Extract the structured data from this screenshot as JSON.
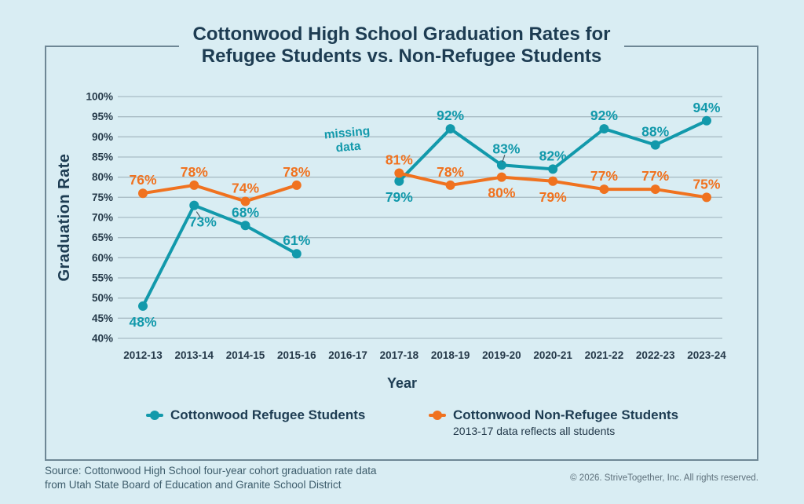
{
  "header": {
    "title_line1": "Cottonwood High School Graduation Rates for",
    "title_line2": "Refugee Students vs. Non-Refugee Students"
  },
  "chart_data": {
    "type": "line",
    "title": "Cottonwood High School Graduation Rates for Refugee Students vs. Non-Refugee Students",
    "xlabel": "Year",
    "ylabel": "Graduation Rate",
    "categories": [
      "2012-13",
      "2013-14",
      "2014-15",
      "2015-16",
      "2016-17",
      "2017-18",
      "2018-19",
      "2019-20",
      "2020-21",
      "2021-22",
      "2022-23",
      "2023-24"
    ],
    "ylim": [
      40,
      100
    ],
    "ytick_step": 5,
    "ytick_format": "percent",
    "grid": true,
    "legend_position": "bottom",
    "series": [
      {
        "name": "Cottonwood Refugee Students",
        "color": "#1299ab",
        "values": [
          48,
          73,
          68,
          61,
          null,
          79,
          92,
          83,
          82,
          92,
          88,
          94
        ],
        "label_placement": [
          "below",
          "below-leader",
          "above",
          "above",
          null,
          "below",
          "above",
          "above-leader",
          "above",
          "above",
          "above",
          "above"
        ]
      },
      {
        "name": "Cottonwood Non-Refugee Students",
        "note": "2013-17 data reflects all students",
        "color": "#f0721f",
        "values": [
          76,
          78,
          74,
          78,
          null,
          81,
          78,
          80,
          79,
          77,
          77,
          75
        ],
        "label_placement": [
          "above",
          "above",
          "above",
          "above",
          null,
          "above",
          "above",
          "below",
          "below",
          "above",
          "above",
          "above"
        ]
      }
    ],
    "annotation": {
      "text": "missing data",
      "category": "2016-17"
    }
  },
  "footer": {
    "source_line1": "Source: Cottonwood High School four-year cohort graduation rate data",
    "source_line2": "from Utah State Board of Education and Granite School District",
    "copyright": "© 2026. StriveTogether, Inc. All rights reserved."
  },
  "colors": {
    "background": "#d9edf3",
    "teal": "#1299ab",
    "orange": "#f0721f",
    "heading": "#1d3c52",
    "grid": "#a9bcc4",
    "frame_border": "#6e8795",
    "leader_line": "#4a5a64"
  }
}
